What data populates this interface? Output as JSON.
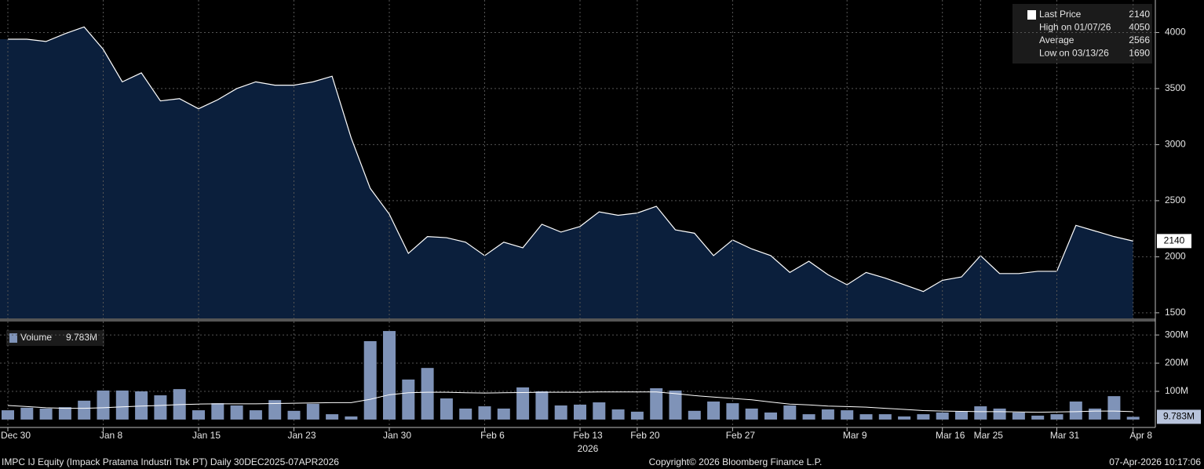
{
  "chart_data": [
    {
      "type": "area",
      "legend": [
        {
          "label": "Last Price",
          "value": 2140
        },
        {
          "label": "High on 01/07/26",
          "value": 4050
        },
        {
          "label": "Average",
          "value": 2566
        },
        {
          "label": "Low on 03/13/26",
          "value": 1690
        }
      ],
      "series": [
        {
          "name": "Last Price",
          "color": "#ffffff",
          "fill": "#0b1f3c",
          "values": [
            3940,
            3940,
            3920,
            3990,
            4050,
            3850,
            3560,
            3640,
            3390,
            3410,
            3320,
            3400,
            3500,
            3560,
            3530,
            3530,
            3560,
            3610,
            3060,
            2610,
            2380,
            2030,
            2180,
            2170,
            2130,
            2010,
            2130,
            2080,
            2290,
            2220,
            2270,
            2400,
            2370,
            2390,
            2450,
            2240,
            2210,
            2010,
            2150,
            2070,
            2010,
            1860,
            1960,
            1840,
            1750,
            1860,
            1810,
            1750,
            1690,
            1790,
            1820,
            2010,
            1850,
            1850,
            1870,
            1870,
            2280,
            2230,
            2180,
            2140
          ]
        }
      ],
      "ylim": [
        1450,
        4290
      ],
      "yticks": [
        1500,
        2000,
        2500,
        3000,
        3500,
        4000
      ],
      "grid": true
    },
    {
      "type": "bar",
      "categories": [
        "Dec 30",
        null,
        null,
        null,
        null,
        "Jan 8",
        null,
        null,
        null,
        null,
        "Jan 15",
        null,
        null,
        null,
        null,
        "Jan 23",
        null,
        null,
        null,
        null,
        "Jan 30",
        null,
        null,
        null,
        null,
        "Feb 6",
        null,
        null,
        null,
        null,
        "Feb 13",
        null,
        null,
        "Feb 20",
        null,
        null,
        null,
        null,
        "Feb 27",
        null,
        null,
        null,
        null,
        null,
        "Mar 9",
        null,
        null,
        null,
        null,
        "Mar 16",
        null,
        "Mar 25",
        null,
        null,
        null,
        "Mar 31",
        null,
        null,
        null,
        "Apr 8"
      ],
      "year_label": "2026",
      "series": [
        {
          "name": "Volume",
          "color": "#7f93b8",
          "values": [
            33,
            42,
            39,
            44,
            67,
            103,
            103,
            100,
            86,
            108,
            33,
            58,
            50,
            33,
            69,
            31,
            56,
            19,
            11,
            278,
            314,
            142,
            183,
            75,
            39,
            47,
            39,
            114,
            100,
            50,
            53,
            61,
            36,
            28,
            111,
            103,
            31,
            64,
            58,
            39,
            25,
            50,
            19,
            36,
            33,
            19,
            19,
            11,
            19,
            25,
            28,
            47,
            39,
            25,
            14,
            19,
            64,
            39,
            83,
            9.783
          ],
          "value_labels": [
            null,
            null,
            null,
            null,
            null,
            null,
            null,
            null,
            null,
            null,
            null,
            null,
            null,
            null,
            null,
            null,
            null,
            null,
            null,
            null,
            null,
            null,
            null,
            null,
            null,
            null,
            null,
            null,
            null,
            null,
            null,
            null,
            null,
            null,
            null,
            null,
            null,
            null,
            null,
            null,
            null,
            null,
            null,
            null,
            null,
            null,
            null,
            null,
            null,
            null,
            null,
            null,
            null,
            null,
            null,
            null,
            null,
            null,
            null,
            "9.783M"
          ]
        },
        {
          "color": "#ffffff",
          "values": [
            50,
            46,
            42,
            40,
            40,
            42,
            45,
            48,
            50,
            53,
            55,
            56,
            56,
            56,
            57,
            58,
            59,
            60,
            60,
            72,
            88,
            95,
            97,
            97,
            95,
            94,
            95,
            96,
            97,
            97,
            97,
            98,
            98,
            98,
            98,
            92,
            85,
            80,
            75,
            70,
            62,
            55,
            52,
            48,
            46,
            44,
            40,
            36,
            32,
            30,
            29,
            28,
            28,
            27,
            26,
            27,
            28,
            30,
            30,
            28
          ]
        }
      ],
      "ylim": [
        -14,
        342
      ],
      "yticks": [
        {
          "value": 100,
          "label": "100M"
        },
        {
          "value": 200,
          "label": "200M"
        },
        {
          "value": 300,
          "label": "300M"
        }
      ],
      "grid": true
    },
    {
      "footer": [
        "IMPC IJ Equity (Impack Pratama Industri Tbk PT) Daily 30DEC2025-07APR2026",
        "Copyright© 2026 Bloomberg Finance L.P.",
        "07-Apr-2026 10:17:06"
      ]
    }
  ]
}
